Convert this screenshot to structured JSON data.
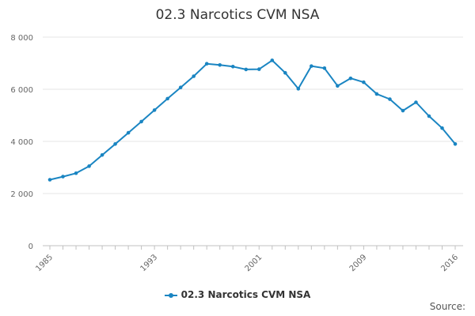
{
  "chart_data": {
    "type": "line",
    "title": "02.3 Narcotics CVM NSA",
    "xlabel": "",
    "ylabel": "",
    "xlim": [
      1985,
      2016
    ],
    "ylim": [
      0,
      8000
    ],
    "y_ticks": [
      "0",
      "2 000",
      "4 000",
      "6 000",
      "8 000"
    ],
    "y_tick_values": [
      0,
      2000,
      4000,
      6000,
      8000
    ],
    "x_ticks": [
      "1985",
      "1993",
      "2001",
      "2009",
      "2016"
    ],
    "x_tick_values": [
      1985,
      1993,
      2001,
      2009,
      2016
    ],
    "grid": "horizontal",
    "legend_position": "bottom-center",
    "series": [
      {
        "name": "02.3 Narcotics CVM NSA",
        "color": "#1a85c2",
        "x": [
          1985,
          1986,
          1987,
          1988,
          1989,
          1990,
          1991,
          1992,
          1993,
          1994,
          1995,
          1996,
          1997,
          1998,
          1999,
          2000,
          2001,
          2002,
          2003,
          2004,
          2005,
          2006,
          2007,
          2008,
          2009,
          2010,
          2011,
          2012,
          2013,
          2014,
          2015,
          2016
        ],
        "values": [
          2530,
          2650,
          2780,
          3050,
          3480,
          3900,
          4330,
          4760,
          5200,
          5640,
          6070,
          6500,
          6980,
          6930,
          6870,
          6760,
          6770,
          7110,
          6630,
          6020,
          6890,
          6810,
          6130,
          6420,
          6270,
          5820,
          5620,
          5180,
          5500,
          4970,
          4510,
          3900
        ]
      }
    ]
  },
  "legend": {
    "label": "02.3 Narcotics CVM NSA"
  },
  "source": {
    "label": "Source:"
  }
}
